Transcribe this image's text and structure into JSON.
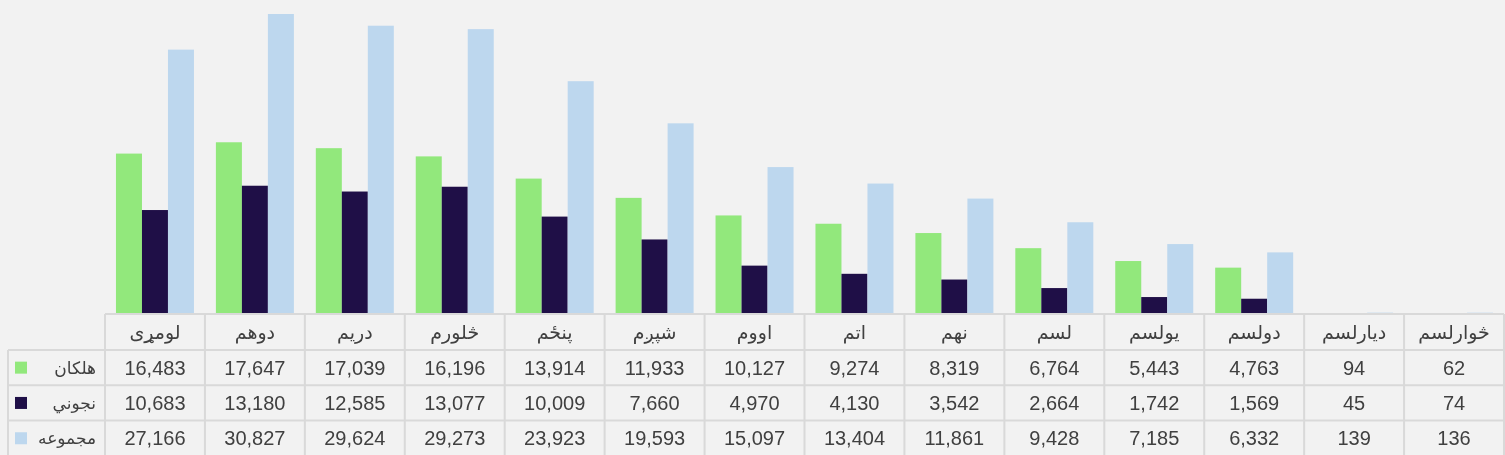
{
  "chart_data": {
    "type": "bar",
    "categories": [
      "لومړی",
      "دوهم",
      "دریم",
      "څلورم",
      "پنځم",
      "شپږم",
      "اووم",
      "اتم",
      "نهم",
      "لسم",
      "یولسم",
      "دولسم",
      "دیارلسم",
      "څوارلسم"
    ],
    "series": [
      {
        "name": "هلکان",
        "color": "#92e87c",
        "values": [
          16483,
          17647,
          17039,
          16196,
          13914,
          11933,
          10127,
          9274,
          8319,
          6764,
          5443,
          4763,
          94,
          62
        ],
        "value_labels": [
          "16,483",
          "17,647",
          "17,039",
          "16,196",
          "13,914",
          "11,933",
          "10,127",
          "9,274",
          "8,319",
          "6,764",
          "5,443",
          "4,763",
          "94",
          "62"
        ]
      },
      {
        "name": "نجوني",
        "color": "#1f0f47",
        "values": [
          10683,
          13180,
          12585,
          13077,
          10009,
          7660,
          4970,
          4130,
          3542,
          2664,
          1742,
          1569,
          45,
          74
        ],
        "value_labels": [
          "10,683",
          "13,180",
          "12,585",
          "13,077",
          "10,009",
          "7,660",
          "4,970",
          "4,130",
          "3,542",
          "2,664",
          "1,742",
          "1,569",
          "45",
          "74"
        ]
      },
      {
        "name": "مجموعه",
        "color": "#bdd7ee",
        "values": [
          27166,
          30827,
          29624,
          29273,
          23923,
          19593,
          15097,
          13404,
          11861,
          9428,
          7185,
          6332,
          139,
          136
        ],
        "value_labels": [
          "27,166",
          "30,827",
          "29,624",
          "29,273",
          "23,923",
          "19,593",
          "15,097",
          "13,404",
          "11,861",
          "9,428",
          "7,185",
          "6,332",
          "139",
          "136"
        ]
      }
    ],
    "legend": "left"
  }
}
